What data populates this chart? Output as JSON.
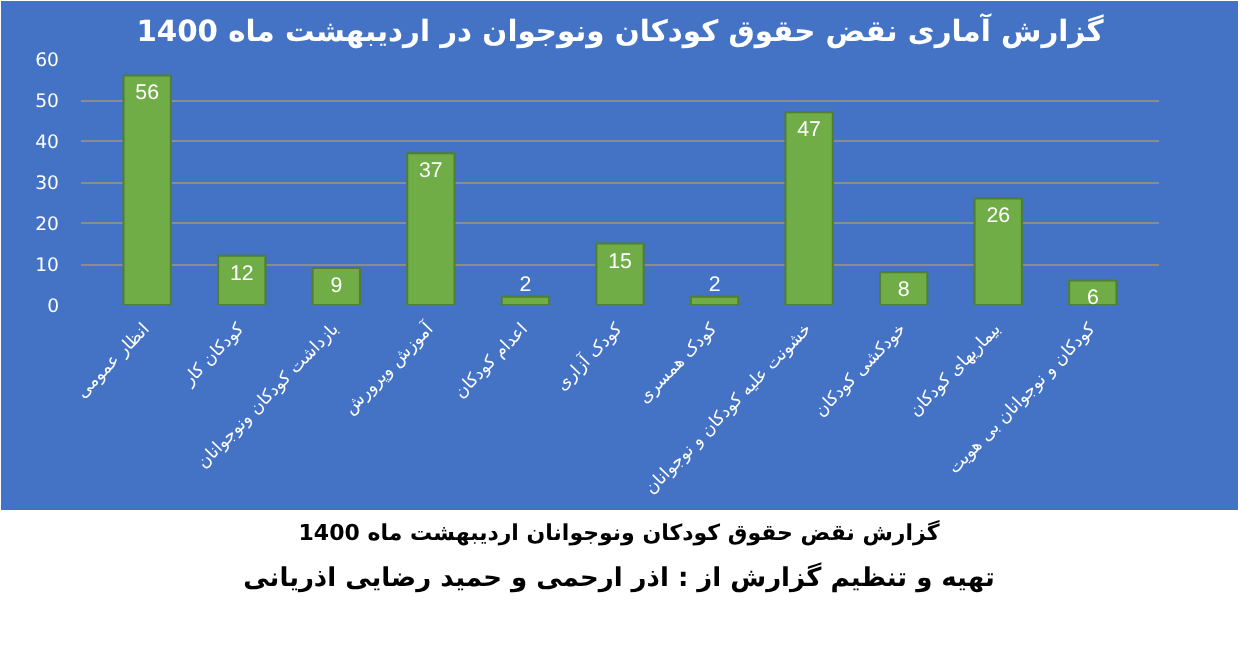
{
  "chart_data": {
    "type": "bar",
    "title": "گزارش آماری نقض حقوق کودکان ونوجوان در اردیبهشت ماه 1400",
    "categories": [
      "انظار عمومی",
      "کودکان کار",
      "بازداشت کودکان ونوجوانان",
      "آموزش وپرورش",
      "اعدام کودکان",
      "کودک آزاری",
      "کودک همسری",
      "خشونت علیه کودکان و نوجوانان",
      "خودکشی کودکان",
      "بیماریهای کودکان",
      "کودکان و نوجوانان بی هویت"
    ],
    "values": [
      56,
      12,
      9,
      37,
      2,
      15,
      2,
      47,
      8,
      26,
      6
    ],
    "color": "#70ad47",
    "ylim": [
      0,
      60
    ],
    "yticks": [
      0,
      10,
      20,
      30,
      40,
      50,
      60
    ],
    "grid": "y",
    "data_labels": true,
    "annotations": [
      "گزارش نقض حقوق کودکان ونوجوانان اردیبهشت ماه 1400",
      "تهیه و تنظیم گزارش از : اذر ارحمی و حمید رضایی اذریانی"
    ]
  }
}
